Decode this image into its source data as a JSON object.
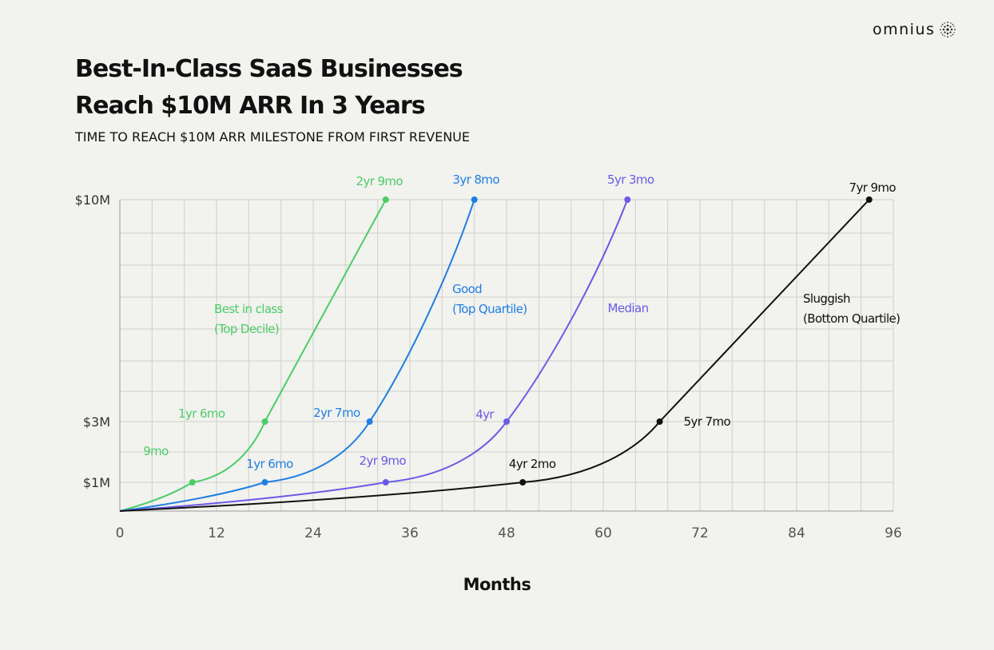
{
  "brand": {
    "name": "omnius",
    "icon": "sparkle-dots-icon"
  },
  "header": {
    "title_line1": "Best-In-Class SaaS Businesses",
    "title_line2": "Reach $10M ARR In 3 Years",
    "subtitle": "TIME TO REACH $10M ARR MILESTONE FROM FIRST REVENUE"
  },
  "chart_data": {
    "type": "line",
    "xlabel": "Months",
    "ylabel": "",
    "xlim": [
      0,
      96
    ],
    "x_ticks": [
      0,
      12,
      24,
      36,
      48,
      60,
      72,
      84,
      96
    ],
    "x_tick_labels": [
      "0",
      "12",
      "24",
      "36",
      "48",
      "60",
      "72",
      "84",
      "96"
    ],
    "y_ticks": [
      1,
      3,
      10
    ],
    "y_tick_labels": [
      "$1M",
      "$3M",
      "$10M"
    ],
    "y_unit": "$M ARR",
    "grid": true,
    "series": [
      {
        "name": "Best in class (Top Decile)",
        "label_lines": [
          "Best in class",
          "(Top Decile)"
        ],
        "color": "#4ccc67",
        "points": [
          {
            "x": 0,
            "y": 0,
            "label": ""
          },
          {
            "x": 9,
            "y": 1,
            "label": "9mo"
          },
          {
            "x": 18,
            "y": 3,
            "label": "1yr 6mo"
          },
          {
            "x": 33,
            "y": 10,
            "label": "2yr 9mo"
          }
        ]
      },
      {
        "name": "Good (Top Quartile)",
        "label_lines": [
          "Good",
          "(Top Quartile)"
        ],
        "color": "#1f7fe0",
        "points": [
          {
            "x": 0,
            "y": 0,
            "label": ""
          },
          {
            "x": 18,
            "y": 1,
            "label": "1yr 6mo"
          },
          {
            "x": 31,
            "y": 3,
            "label": "2yr 7mo"
          },
          {
            "x": 44,
            "y": 10,
            "label": "3yr 8mo"
          }
        ]
      },
      {
        "name": "Median",
        "label_lines": [
          "Median"
        ],
        "color": "#6a5be6",
        "points": [
          {
            "x": 0,
            "y": 0,
            "label": ""
          },
          {
            "x": 33,
            "y": 1,
            "label": "2yr 9mo"
          },
          {
            "x": 48,
            "y": 3,
            "label": "4yr"
          },
          {
            "x": 63,
            "y": 10,
            "label": "5yr 3mo"
          }
        ]
      },
      {
        "name": "Sluggish (Bottom Quartile)",
        "label_lines": [
          "Sluggish",
          "(Bottom Quartile)"
        ],
        "color": "#111111",
        "points": [
          {
            "x": 0,
            "y": 0,
            "label": ""
          },
          {
            "x": 50,
            "y": 1,
            "label": "4yr 2mo"
          },
          {
            "x": 67,
            "y": 3,
            "label": "5yr 7mo"
          },
          {
            "x": 93,
            "y": 10,
            "label": "7yr 9mo"
          }
        ]
      }
    ]
  }
}
